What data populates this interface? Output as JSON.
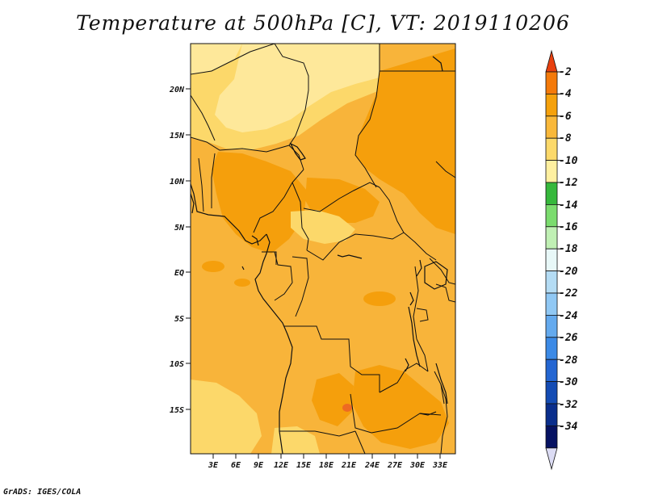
{
  "title": "Temperature at 500hPa [C], VT: 2019110206",
  "footer": "GrADS: IGES/COLA",
  "map": {
    "region": "Central Africa",
    "lat_labels": [
      "20N",
      "15N",
      "10N",
      "5N",
      "EQ",
      "5S",
      "10S",
      "15S"
    ],
    "lon_labels": [
      "3E",
      "6E",
      "9E",
      "12E",
      "15E",
      "18E",
      "21E",
      "24E",
      "27E",
      "30E",
      "33E"
    ]
  },
  "colorbar": {
    "labels": [
      "-2",
      "-4",
      "-6",
      "-8",
      "-10",
      "-12",
      "-14",
      "-16",
      "-18",
      "-20",
      "-22",
      "-24",
      "-26",
      "-28",
      "-30",
      "-32",
      "-34"
    ],
    "colors": [
      "#e8400f",
      "#f47a0a",
      "#f5a10c",
      "#f9b83a",
      "#fcd96a",
      "#fff0a0",
      "#36b83c",
      "#7bdc6e",
      "#c0f0b4",
      "#e8f8f8",
      "#b4dcf4",
      "#90c8f4",
      "#64aaee",
      "#3c8ae6",
      "#2466d2",
      "#144cb4",
      "#0a2e8c",
      "#061262",
      "#dcdcf4"
    ]
  },
  "field_colors": {
    "warm": "#f59f0c",
    "mid": "#f8b43a",
    "cool": "#fcd86a",
    "cold": "#fee89a",
    "hot": "#ee6a22"
  }
}
